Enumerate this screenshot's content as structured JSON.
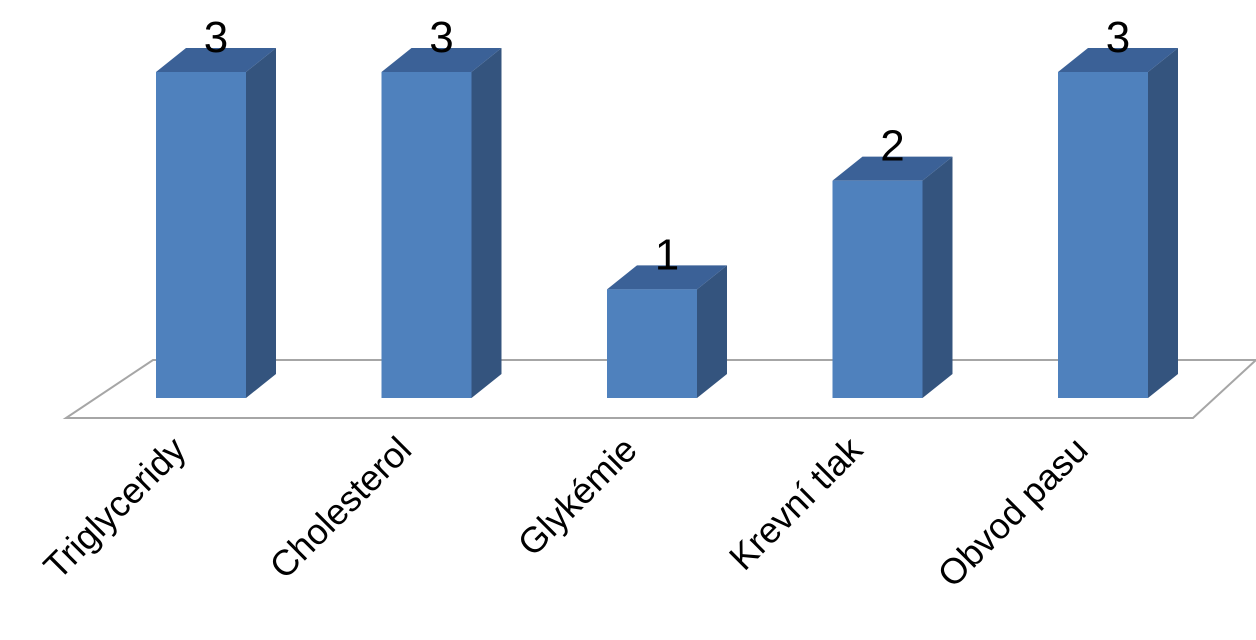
{
  "chart_data": {
    "type": "bar",
    "style": "3d-column",
    "categories": [
      "Triglyceridy",
      "Cholesterol",
      "Glykémie",
      "Krevní tlak",
      "Obvod pasu"
    ],
    "values": [
      3,
      3,
      1,
      2,
      3
    ],
    "title": "",
    "xlabel": "",
    "ylabel": "",
    "ylim": [
      0,
      3
    ],
    "grid": false,
    "legend": "none",
    "data_labels": true
  },
  "colors": {
    "bar_front": "#4f81bd",
    "bar_side": "#34547e",
    "bar_top": "#3b6197",
    "floor_line": "#a6a6a6"
  }
}
